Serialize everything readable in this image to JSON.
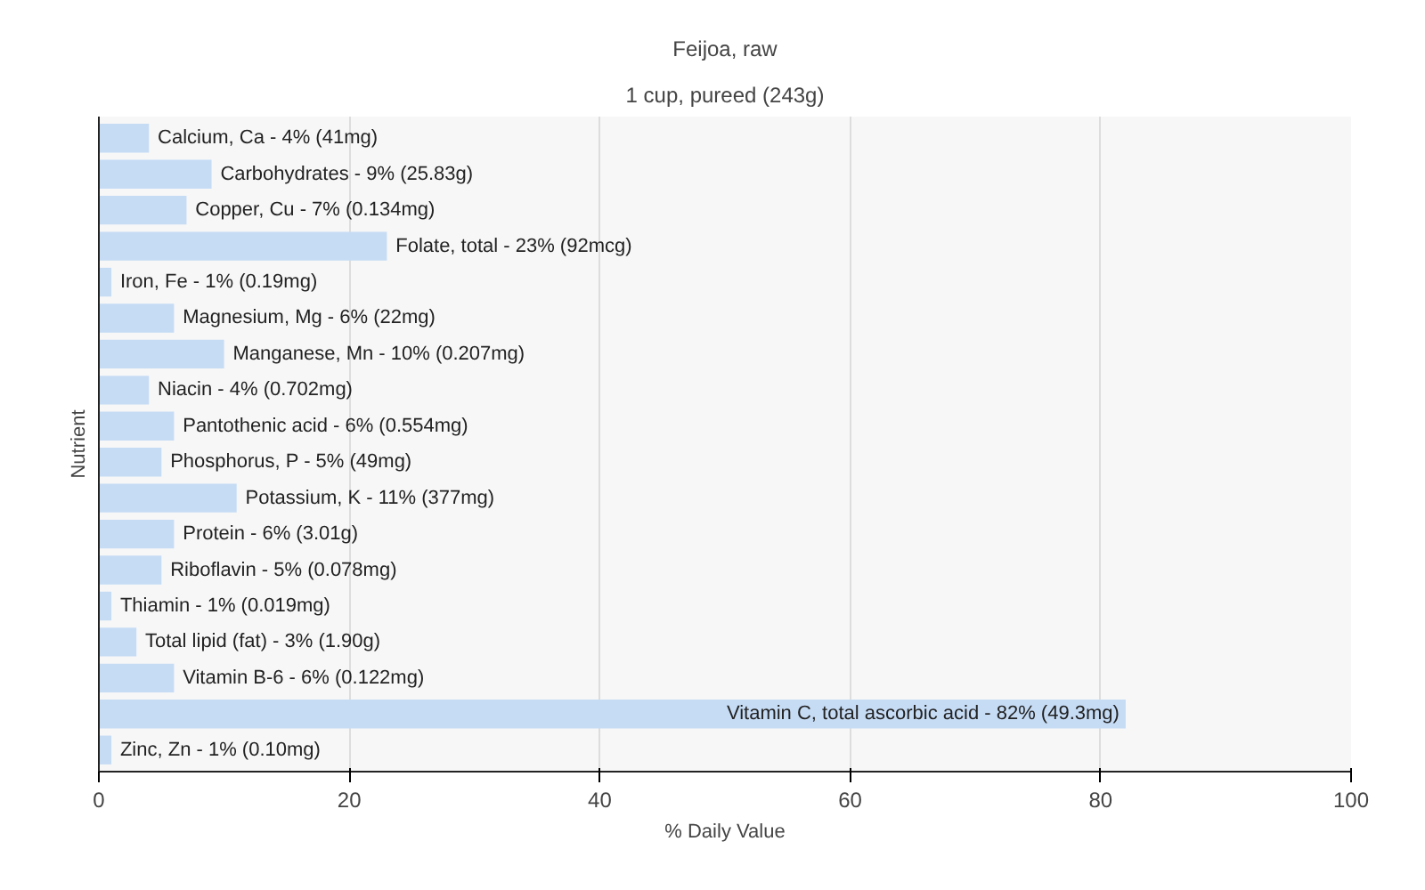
{
  "chart_data": {
    "type": "bar",
    "orientation": "horizontal",
    "title": "Feijoa, raw",
    "subtitle": "1 cup, pureed (243g)",
    "xlabel": "% Daily Value",
    "ylabel": "Nutrient",
    "categories": [
      "Calcium, Ca - 4% (41mg)",
      "Carbohydrates - 9% (25.83g)",
      "Copper, Cu - 7% (0.134mg)",
      "Folate, total - 23% (92mcg)",
      "Iron, Fe - 1% (0.19mg)",
      "Magnesium, Mg - 6% (22mg)",
      "Manganese, Mn - 10% (0.207mg)",
      "Niacin - 4% (0.702mg)",
      "Pantothenic acid - 6% (0.554mg)",
      "Phosphorus, P - 5% (49mg)",
      "Potassium, K - 11% (377mg)",
      "Protein - 6% (3.01g)",
      "Riboflavin - 5% (0.078mg)",
      "Thiamin - 1% (0.019mg)",
      "Total lipid (fat) - 3% (1.90g)",
      "Vitamin B-6 - 6% (0.122mg)",
      "Vitamin C, total ascorbic acid - 82% (49.3mg)",
      "Zinc, Zn - 1% (0.10mg)"
    ],
    "values": [
      4,
      9,
      7,
      23,
      1,
      6,
      10,
      4,
      6,
      5,
      11,
      6,
      5,
      1,
      3,
      6,
      82,
      1
    ],
    "color": "#c6dcf5",
    "xlim": [
      0,
      100
    ],
    "xticks": [
      0,
      20,
      40,
      60,
      80,
      100
    ],
    "grid": "x",
    "tick_labels": "x"
  }
}
